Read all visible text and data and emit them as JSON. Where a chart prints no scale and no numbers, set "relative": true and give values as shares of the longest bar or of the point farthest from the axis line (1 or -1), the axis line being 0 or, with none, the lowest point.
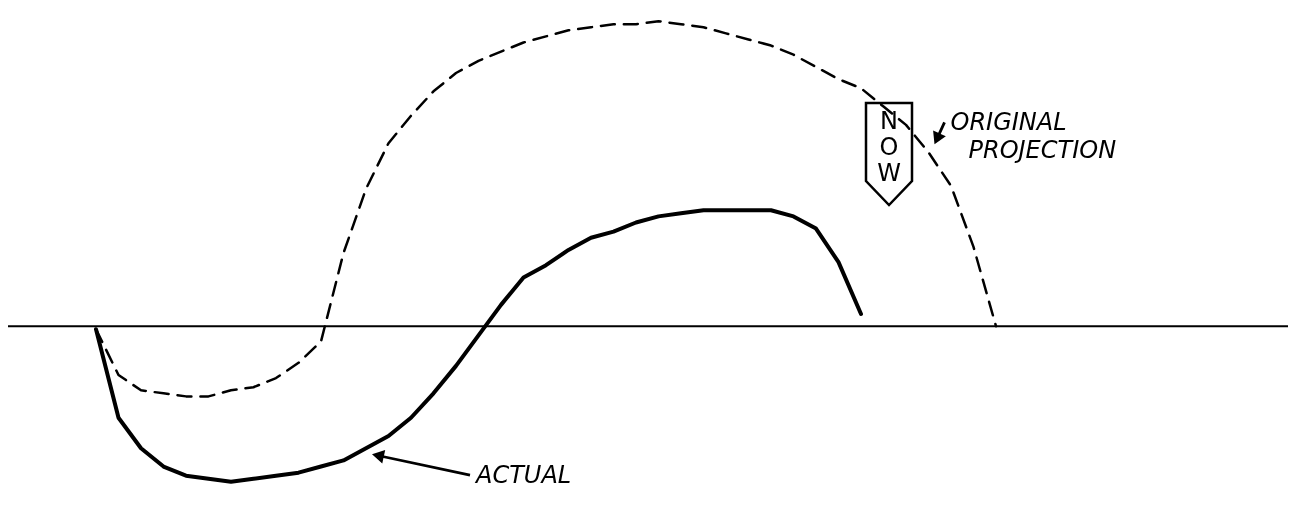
{
  "chart_data": {
    "type": "line",
    "relative": true,
    "legend": "right",
    "categories": [
      null,
      null,
      null,
      null,
      null,
      null,
      null,
      null,
      null,
      null,
      null,
      null,
      null,
      null,
      null,
      null,
      null,
      null,
      null,
      null,
      null,
      null,
      null,
      null,
      null,
      null,
      null,
      null,
      null,
      null,
      null,
      null,
      null,
      null,
      null,
      null,
      null,
      null,
      null,
      null,
      null
    ],
    "series": [
      {
        "name": "ORIGINAL PROJECTION",
        "color": "#000000",
        "line_style": "dashed",
        "values": [
          -0.01,
          -0.16,
          -0.21,
          -0.22,
          -0.23,
          -0.23,
          -0.21,
          -0.2,
          -0.17,
          -0.12,
          -0.05,
          0.24,
          0.45,
          0.6,
          0.69,
          0.77,
          0.83,
          0.87,
          0.9,
          0.93,
          0.95,
          0.97,
          0.98,
          0.99,
          0.99,
          1,
          0.99,
          0.98,
          0.96,
          0.94,
          0.92,
          0.89,
          0.85,
          0.81,
          0.78,
          0.72,
          0.66,
          0.57,
          0.46,
          0.26,
          0
        ]
      },
      {
        "name": "ACTUAL",
        "color": "#000000",
        "line_style": "solid",
        "values": [
          -0.01,
          -0.3,
          -0.4,
          -0.46,
          -0.49,
          -0.5,
          -0.51,
          -0.5,
          -0.49,
          -0.48,
          -0.46,
          -0.44,
          -0.4,
          -0.36,
          -0.3,
          -0.22,
          -0.13,
          -0.03,
          0.07,
          0.16,
          0.2,
          0.25,
          0.29,
          0.31,
          0.34,
          0.36,
          0.37,
          0.38,
          0.38,
          0.38,
          0.38,
          0.36,
          0.32,
          0.21,
          0.04,
          null,
          null,
          null,
          null,
          null,
          null
        ]
      }
    ],
    "annotations": [
      "NOW"
    ]
  }
}
